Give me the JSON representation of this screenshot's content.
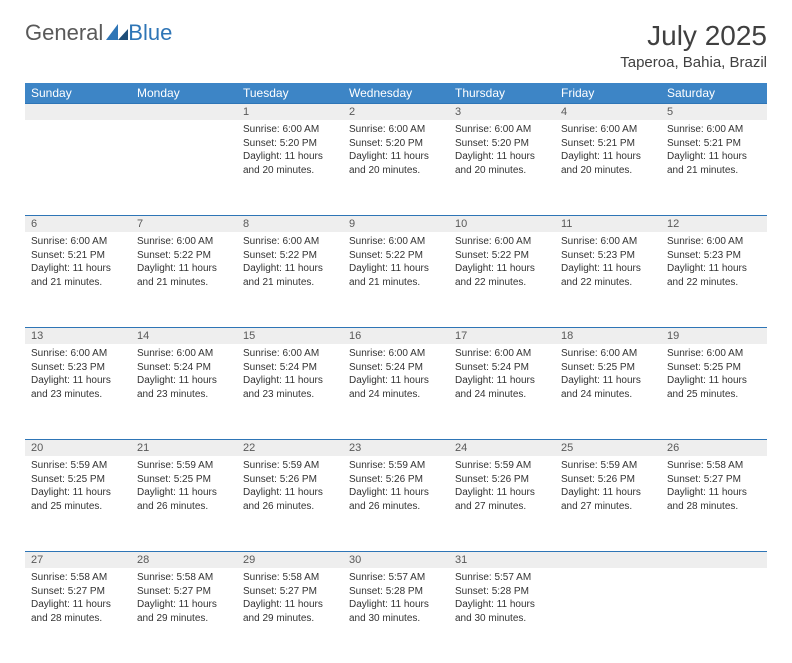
{
  "brand": {
    "part1": "General",
    "part2": "Blue"
  },
  "title": "July 2025",
  "location": "Taperoa, Bahia, Brazil",
  "colors": {
    "header_bg": "#3d85c6",
    "header_text": "#ffffff",
    "daynum_bg": "#eeeeee",
    "border": "#2e75b6",
    "text": "#333333",
    "title_text": "#404040"
  },
  "weekdays": [
    "Sunday",
    "Monday",
    "Tuesday",
    "Wednesday",
    "Thursday",
    "Friday",
    "Saturday"
  ],
  "weeks": [
    [
      null,
      null,
      {
        "n": "1",
        "sr": "6:00 AM",
        "ss": "5:20 PM",
        "dl": "11 hours and 20 minutes."
      },
      {
        "n": "2",
        "sr": "6:00 AM",
        "ss": "5:20 PM",
        "dl": "11 hours and 20 minutes."
      },
      {
        "n": "3",
        "sr": "6:00 AM",
        "ss": "5:20 PM",
        "dl": "11 hours and 20 minutes."
      },
      {
        "n": "4",
        "sr": "6:00 AM",
        "ss": "5:21 PM",
        "dl": "11 hours and 20 minutes."
      },
      {
        "n": "5",
        "sr": "6:00 AM",
        "ss": "5:21 PM",
        "dl": "11 hours and 21 minutes."
      }
    ],
    [
      {
        "n": "6",
        "sr": "6:00 AM",
        "ss": "5:21 PM",
        "dl": "11 hours and 21 minutes."
      },
      {
        "n": "7",
        "sr": "6:00 AM",
        "ss": "5:22 PM",
        "dl": "11 hours and 21 minutes."
      },
      {
        "n": "8",
        "sr": "6:00 AM",
        "ss": "5:22 PM",
        "dl": "11 hours and 21 minutes."
      },
      {
        "n": "9",
        "sr": "6:00 AM",
        "ss": "5:22 PM",
        "dl": "11 hours and 21 minutes."
      },
      {
        "n": "10",
        "sr": "6:00 AM",
        "ss": "5:22 PM",
        "dl": "11 hours and 22 minutes."
      },
      {
        "n": "11",
        "sr": "6:00 AM",
        "ss": "5:23 PM",
        "dl": "11 hours and 22 minutes."
      },
      {
        "n": "12",
        "sr": "6:00 AM",
        "ss": "5:23 PM",
        "dl": "11 hours and 22 minutes."
      }
    ],
    [
      {
        "n": "13",
        "sr": "6:00 AM",
        "ss": "5:23 PM",
        "dl": "11 hours and 23 minutes."
      },
      {
        "n": "14",
        "sr": "6:00 AM",
        "ss": "5:24 PM",
        "dl": "11 hours and 23 minutes."
      },
      {
        "n": "15",
        "sr": "6:00 AM",
        "ss": "5:24 PM",
        "dl": "11 hours and 23 minutes."
      },
      {
        "n": "16",
        "sr": "6:00 AM",
        "ss": "5:24 PM",
        "dl": "11 hours and 24 minutes."
      },
      {
        "n": "17",
        "sr": "6:00 AM",
        "ss": "5:24 PM",
        "dl": "11 hours and 24 minutes."
      },
      {
        "n": "18",
        "sr": "6:00 AM",
        "ss": "5:25 PM",
        "dl": "11 hours and 24 minutes."
      },
      {
        "n": "19",
        "sr": "6:00 AM",
        "ss": "5:25 PM",
        "dl": "11 hours and 25 minutes."
      }
    ],
    [
      {
        "n": "20",
        "sr": "5:59 AM",
        "ss": "5:25 PM",
        "dl": "11 hours and 25 minutes."
      },
      {
        "n": "21",
        "sr": "5:59 AM",
        "ss": "5:25 PM",
        "dl": "11 hours and 26 minutes."
      },
      {
        "n": "22",
        "sr": "5:59 AM",
        "ss": "5:26 PM",
        "dl": "11 hours and 26 minutes."
      },
      {
        "n": "23",
        "sr": "5:59 AM",
        "ss": "5:26 PM",
        "dl": "11 hours and 26 minutes."
      },
      {
        "n": "24",
        "sr": "5:59 AM",
        "ss": "5:26 PM",
        "dl": "11 hours and 27 minutes."
      },
      {
        "n": "25",
        "sr": "5:59 AM",
        "ss": "5:26 PM",
        "dl": "11 hours and 27 minutes."
      },
      {
        "n": "26",
        "sr": "5:58 AM",
        "ss": "5:27 PM",
        "dl": "11 hours and 28 minutes."
      }
    ],
    [
      {
        "n": "27",
        "sr": "5:58 AM",
        "ss": "5:27 PM",
        "dl": "11 hours and 28 minutes."
      },
      {
        "n": "28",
        "sr": "5:58 AM",
        "ss": "5:27 PM",
        "dl": "11 hours and 29 minutes."
      },
      {
        "n": "29",
        "sr": "5:58 AM",
        "ss": "5:27 PM",
        "dl": "11 hours and 29 minutes."
      },
      {
        "n": "30",
        "sr": "5:57 AM",
        "ss": "5:28 PM",
        "dl": "11 hours and 30 minutes."
      },
      {
        "n": "31",
        "sr": "5:57 AM",
        "ss": "5:28 PM",
        "dl": "11 hours and 30 minutes."
      },
      null,
      null
    ]
  ],
  "labels": {
    "sunrise": "Sunrise:",
    "sunset": "Sunset:",
    "daylight": "Daylight:"
  }
}
